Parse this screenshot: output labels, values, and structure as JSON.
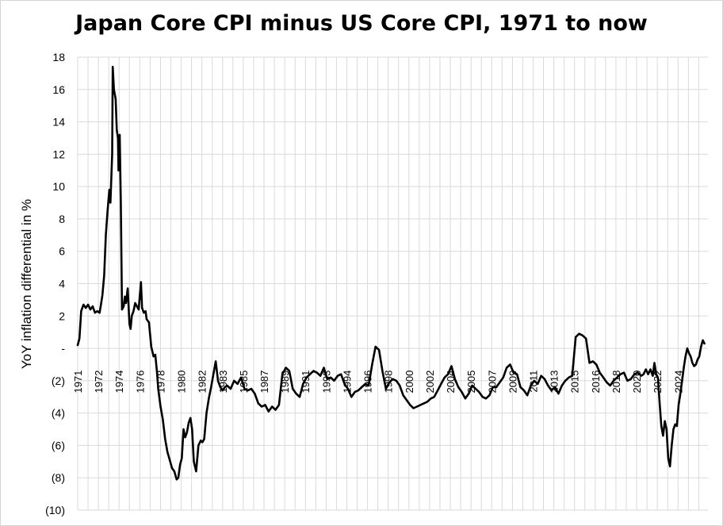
{
  "chart_data": {
    "type": "line",
    "title": "Japan Core CPI minus US Core CPI, 1971 to now",
    "ylabel": "YoY inflation differential in %",
    "xlabel": "",
    "ylim": [
      -10,
      18
    ],
    "xlim": [
      1971.0,
      2025.8
    ],
    "grid": true,
    "legend": "none",
    "y_tick_labels": [
      "18",
      "16",
      "14",
      "12",
      "10",
      "8",
      "6",
      "4",
      "2",
      "-",
      "(2)",
      "(4)",
      "(6)",
      "(8)",
      "(10)"
    ],
    "x_tick_labels": [
      "1971",
      "1972",
      "1974",
      "1976",
      "1978",
      "1980",
      "1982",
      "1983",
      "1985",
      "1987",
      "1989",
      "1991",
      "1993",
      "1994",
      "1996",
      "1998",
      "2000",
      "2002",
      "2004",
      "2005",
      "2007",
      "2009",
      "2011",
      "2013",
      "2015",
      "2016",
      "2018",
      "2020",
      "2022",
      "2024"
    ],
    "x_tick_positions": [
      1971,
      1972.8,
      1974.6,
      1976.4,
      1978.2,
      1980,
      1981.8,
      1983.6,
      1985.4,
      1987.2,
      1989,
      1990.8,
      1992.6,
      1994.4,
      1996.2,
      1998,
      1999.8,
      2001.6,
      2003.4,
      2005.2,
      2007,
      2008.8,
      2010.6,
      2012.4,
      2014.2,
      2016,
      2017.8,
      2019.6,
      2021.4,
      2023.2
    ],
    "series": [
      {
        "color": "#000000",
        "x": [
          1971.0,
          1971.15,
          1971.3,
          1971.5,
          1971.7,
          1971.9,
          1972.1,
          1972.3,
          1972.5,
          1972.7,
          1972.9,
          1973.0,
          1973.15,
          1973.3,
          1973.45,
          1973.6,
          1973.75,
          1973.85,
          1974.0,
          1974.05,
          1974.15,
          1974.3,
          1974.4,
          1974.5,
          1974.55,
          1974.65,
          1974.75,
          1974.85,
          1975.0,
          1975.1,
          1975.2,
          1975.35,
          1975.5,
          1975.6,
          1975.7,
          1975.85,
          1976.0,
          1976.15,
          1976.3,
          1976.5,
          1976.6,
          1976.75,
          1976.9,
          1977.0,
          1977.2,
          1977.4,
          1977.6,
          1977.75,
          1977.9,
          1978.0,
          1978.2,
          1978.4,
          1978.6,
          1978.8,
          1979.0,
          1979.2,
          1979.4,
          1979.6,
          1979.75,
          1979.9,
          1980.05,
          1980.2,
          1980.35,
          1980.5,
          1980.65,
          1980.8,
          1980.95,
          1981.1,
          1981.3,
          1981.5,
          1981.7,
          1981.85,
          1982.0,
          1982.2,
          1982.4,
          1982.6,
          1982.8,
          1983.0,
          1983.2,
          1983.4,
          1983.6,
          1983.8,
          1984.0,
          1984.3,
          1984.6,
          1984.9,
          1985.2,
          1985.5,
          1985.8,
          1986.1,
          1986.4,
          1986.7,
          1987.0,
          1987.3,
          1987.6,
          1987.9,
          1988.2,
          1988.5,
          1988.8,
          1989.1,
          1989.4,
          1989.7,
          1990.0,
          1990.3,
          1990.6,
          1990.9,
          1991.2,
          1991.5,
          1991.8,
          1992.1,
          1992.4,
          1992.7,
          1993.0,
          1993.3,
          1993.6,
          1993.9,
          1994.2,
          1994.5,
          1994.8,
          1995.1,
          1995.4,
          1995.7,
          1996.0,
          1996.3,
          1996.6,
          1996.9,
          1997.2,
          1997.5,
          1997.8,
          1998.1,
          1998.4,
          1998.7,
          1999.0,
          1999.3,
          1999.6,
          1999.9,
          2000.2,
          2000.5,
          2000.8,
          2001.1,
          2001.4,
          2001.7,
          2002.0,
          2002.3,
          2002.6,
          2002.9,
          2003.2,
          2003.5,
          2003.8,
          2004.1,
          2004.4,
          2004.7,
          2005.0,
          2005.3,
          2005.6,
          2005.9,
          2006.2,
          2006.5,
          2006.8,
          2007.1,
          2007.4,
          2007.7,
          2008.0,
          2008.3,
          2008.6,
          2008.9,
          2009.2,
          2009.5,
          2009.8,
          2010.1,
          2010.4,
          2010.7,
          2011.0,
          2011.3,
          2011.6,
          2011.9,
          2012.2,
          2012.5,
          2012.8,
          2013.1,
          2013.4,
          2013.7,
          2014.0,
          2014.3,
          2014.6,
          2014.9,
          2015.2,
          2015.5,
          2015.8,
          2016.1,
          2016.4,
          2016.7,
          2017.0,
          2017.3,
          2017.6,
          2017.9,
          2018.2,
          2018.5,
          2018.8,
          2019.1,
          2019.4,
          2019.7,
          2020.0,
          2020.2,
          2020.4,
          2020.6,
          2020.8,
          2021.0,
          2021.15,
          2021.3,
          2021.45,
          2021.6,
          2021.75,
          2021.9,
          2022.05,
          2022.2,
          2022.35,
          2022.5,
          2022.65,
          2022.8,
          2022.95,
          2023.1,
          2023.25,
          2023.4,
          2023.55,
          2023.7,
          2023.85,
          2024.0,
          2024.15,
          2024.3,
          2024.45,
          2024.6,
          2024.75,
          2024.9,
          2025.05,
          2025.2,
          2025.35,
          2025.5
        ],
        "values": [
          0.2,
          0.6,
          2.3,
          2.7,
          2.5,
          2.7,
          2.4,
          2.6,
          2.2,
          2.3,
          2.2,
          2.6,
          3.3,
          4.5,
          7.0,
          8.5,
          9.8,
          9.0,
          12.0,
          17.4,
          16.0,
          15.4,
          13.5,
          13.0,
          11.0,
          13.2,
          9.0,
          2.4,
          2.6,
          3.2,
          2.8,
          3.7,
          1.5,
          1.2,
          2.0,
          2.3,
          2.8,
          2.6,
          2.4,
          4.1,
          2.5,
          2.2,
          2.3,
          1.8,
          1.6,
          0.1,
          -0.5,
          -0.4,
          -1.5,
          -2.5,
          -3.6,
          -4.4,
          -5.6,
          -6.4,
          -6.9,
          -7.4,
          -7.6,
          -8.1,
          -8.0,
          -7.2,
          -6.8,
          -5.0,
          -5.5,
          -5.2,
          -4.6,
          -4.3,
          -5.0,
          -7.0,
          -7.6,
          -6.0,
          -5.7,
          -5.8,
          -5.6,
          -4.0,
          -3.1,
          -2.4,
          -1.6,
          -0.8,
          -2.0,
          -2.4,
          -2.6,
          -2.4,
          -2.3,
          -2.5,
          -2.0,
          -2.2,
          -1.8,
          -2.5,
          -2.6,
          -2.5,
          -2.8,
          -3.4,
          -3.6,
          -3.5,
          -3.9,
          -3.6,
          -3.8,
          -3.5,
          -1.6,
          -1.2,
          -1.4,
          -2.5,
          -2.8,
          -3.0,
          -2.2,
          -1.8,
          -1.6,
          -1.4,
          -1.5,
          -1.7,
          -1.2,
          -1.9,
          -1.8,
          -2.0,
          -1.7,
          -1.6,
          -2.2,
          -2.5,
          -3.0,
          -2.7,
          -2.6,
          -2.4,
          -2.2,
          -2.3,
          -1.0,
          0.1,
          -0.1,
          -1.4,
          -2.5,
          -2.1,
          -1.9,
          -2.0,
          -2.3,
          -2.9,
          -3.2,
          -3.5,
          -3.7,
          -3.6,
          -3.5,
          -3.4,
          -3.3,
          -3.1,
          -3.0,
          -2.6,
          -2.2,
          -1.8,
          -1.6,
          -1.1,
          -1.9,
          -2.4,
          -2.7,
          -3.1,
          -2.8,
          -2.3,
          -2.5,
          -2.7,
          -3.0,
          -3.1,
          -2.9,
          -2.4,
          -2.4,
          -2.1,
          -1.8,
          -1.2,
          -1.0,
          -1.5,
          -1.6,
          -2.4,
          -2.6,
          -2.9,
          -2.3,
          -2.0,
          -2.2,
          -1.7,
          -1.9,
          -2.3,
          -2.6,
          -2.4,
          -2.8,
          -2.3,
          -2.0,
          -1.8,
          -1.7,
          0.7,
          0.9,
          0.8,
          0.6,
          -0.9,
          -0.8,
          -1.0,
          -1.5,
          -1.8,
          -2.1,
          -2.3,
          -2.0,
          -1.8,
          -1.6,
          -1.5,
          -2.0,
          -1.9,
          -1.6,
          -1.5,
          -1.7,
          -1.6,
          -1.3,
          -1.6,
          -1.3,
          -1.7,
          -0.9,
          -1.6,
          -1.8,
          -3.4,
          -4.8,
          -5.4,
          -4.5,
          -5.0,
          -6.8,
          -7.3,
          -6.0,
          -5.0,
          -4.7,
          -4.8,
          -3.5,
          -2.8,
          -2.0,
          -1.2,
          -0.5,
          0.0,
          -0.3,
          -0.5,
          -0.9,
          -1.1,
          -1.0,
          -0.7,
          -0.5,
          0.1,
          0.5,
          0.3
        ]
      }
    ]
  }
}
